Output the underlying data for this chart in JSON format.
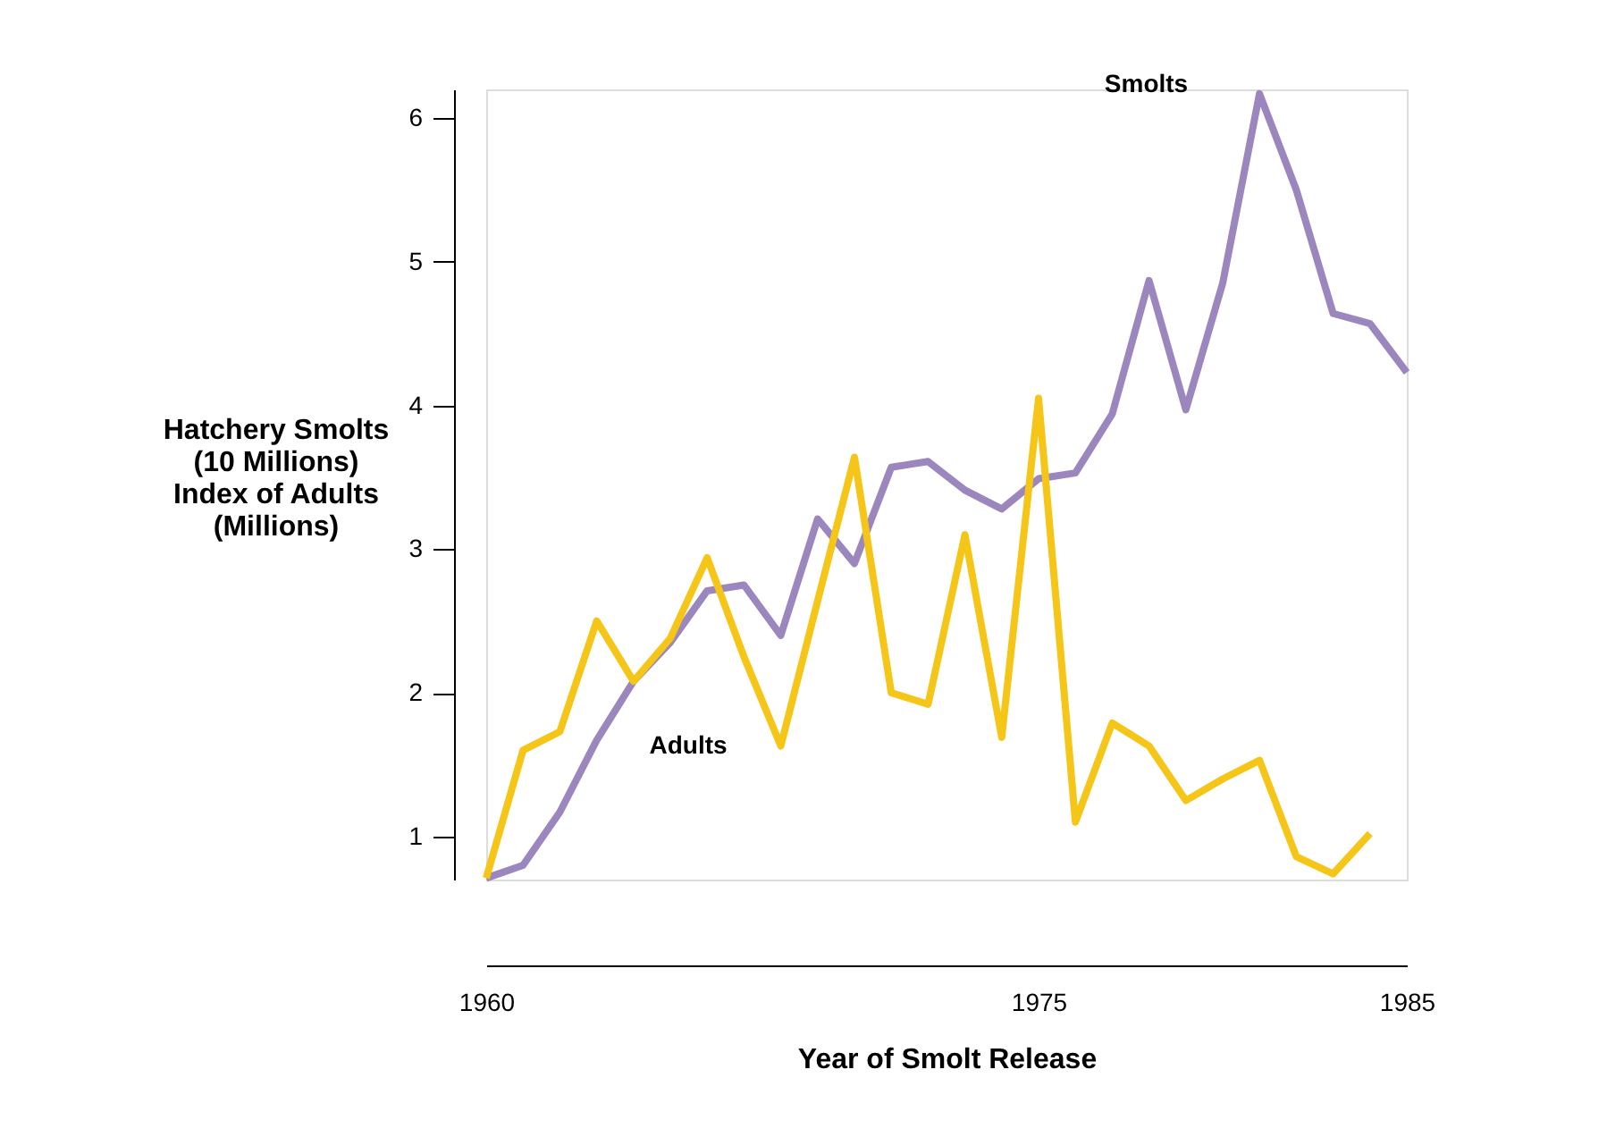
{
  "chart_data": {
    "type": "line",
    "xlabel": "Year of Smolt Release",
    "ylabel": "Hatchery Smolts\n(10 Millions)\nIndex of Adults\n(Millions)",
    "x": [
      1960,
      1961,
      1962,
      1963,
      1964,
      1965,
      1966,
      1967,
      1968,
      1969,
      1970,
      1971,
      1972,
      1973,
      1974,
      1975,
      1976,
      1977,
      1978,
      1979,
      1980,
      1981,
      1982,
      1983,
      1984,
      1985
    ],
    "series": [
      {
        "name": "Smolts",
        "color": "#9b86bd",
        "values": [
          0.71,
          0.8,
          1.17,
          1.67,
          2.08,
          2.35,
          2.71,
          2.75,
          2.4,
          3.21,
          2.9,
          3.57,
          3.61,
          3.41,
          3.28,
          3.49,
          3.53,
          3.94,
          4.87,
          3.97,
          4.85,
          6.17,
          5.5,
          4.64,
          4.57,
          4.23
        ]
      },
      {
        "name": "Adults",
        "color": "#f5c518",
        "values": [
          0.71,
          1.6,
          1.73,
          2.5,
          2.08,
          2.38,
          2.94,
          2.25,
          1.63,
          2.64,
          3.64,
          2.0,
          1.92,
          3.1,
          1.69,
          4.05,
          1.1,
          1.79,
          1.63,
          1.25,
          1.4,
          1.53,
          0.86,
          0.74,
          1.02,
          null
        ]
      }
    ],
    "xlim": [
      1960,
      1985
    ],
    "xticks": [
      1960,
      1975,
      1985
    ],
    "ylim": [
      0.7,
      6.2
    ],
    "yticks": [
      1,
      2,
      3,
      4,
      5,
      6
    ],
    "grid": false,
    "legend": false,
    "marker": "none",
    "line_style": "solid"
  }
}
